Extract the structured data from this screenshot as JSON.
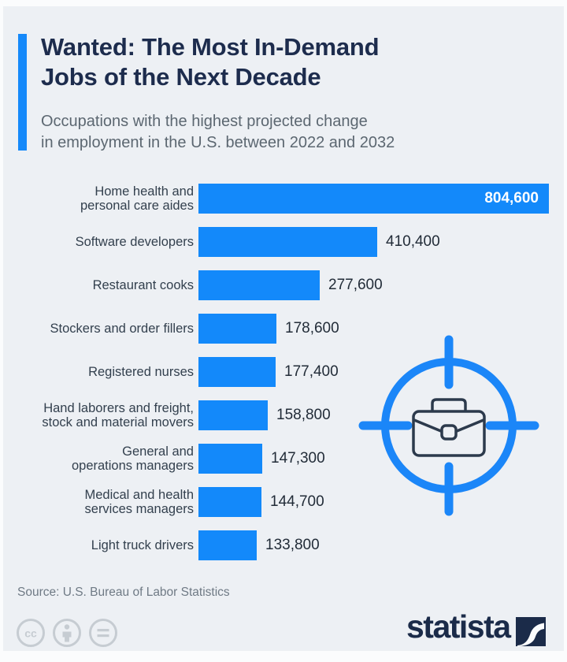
{
  "header": {
    "accent_color": "#1589fa",
    "title_line1": "Wanted: The Most In-Demand",
    "title_line2": "Jobs of the Next Decade",
    "subtitle_line1": "Occupations with the highest projected change",
    "subtitle_line2": "in employment in the U.S. between 2022 and 2032"
  },
  "chart_data": {
    "type": "bar",
    "orientation": "horizontal",
    "title": "Wanted: The Most In-Demand Jobs of the Next Decade",
    "subtitle": "Occupations with the highest projected change in employment in the U.S. between 2022 and 2032",
    "categories": [
      "Home health and personal care aides",
      "Software developers",
      "Restaurant cooks",
      "Stockers and order fillers",
      "Registered nurses",
      "Hand laborers and freight, stock and material movers",
      "General and operations managers",
      "Medical and health services managers",
      "Light truck drivers"
    ],
    "label_lines": [
      [
        "Home health and",
        "personal care aides"
      ],
      [
        "Software developers"
      ],
      [
        "Restaurant cooks"
      ],
      [
        "Stockers and order fillers"
      ],
      [
        "Registered nurses"
      ],
      [
        "Hand laborers and freight,",
        "stock and material movers"
      ],
      [
        "General and",
        "operations managers"
      ],
      [
        "Medical and health",
        "services managers"
      ],
      [
        "Light truck drivers"
      ]
    ],
    "values": [
      804600,
      410400,
      277600,
      178600,
      177400,
      158800,
      147300,
      144700,
      133800
    ],
    "value_labels": [
      "804,600",
      "410,400",
      "277,600",
      "178,600",
      "177,400",
      "158,800",
      "147,300",
      "144,700",
      "133,800"
    ],
    "xlim": [
      0,
      805000
    ],
    "bar_color": "#1389fa",
    "grid": false,
    "legend": false,
    "first_value_inside_bar": true
  },
  "icons": {
    "target_briefcase": {
      "name": "target-briefcase-icon",
      "ring_color": "#1b86f8",
      "briefcase_color": "#2c3a4c"
    },
    "license": [
      "creative-commons",
      "attribution",
      "no-derivatives"
    ]
  },
  "footer": {
    "source": "Source: U.S. Bureau of Labor Statistics",
    "brand_wordmark": "statista"
  }
}
